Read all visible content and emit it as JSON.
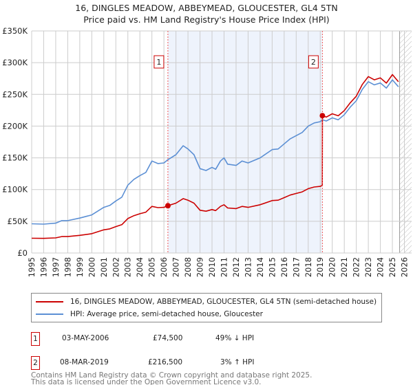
{
  "header": {
    "title": "16, DINGLES MEADOW, ABBEYMEAD, GLOUCESTER, GL4 5TN",
    "subtitle": "Price paid vs. HM Land Registry's House Price Index (HPI)"
  },
  "chart_data": {
    "type": "line",
    "title": "16, DINGLES MEADOW, ABBEYMEAD, GLOUCESTER, GL4 5TN",
    "subtitle": "Price paid vs. HM Land Registry's House Price Index (HPI)",
    "xlim": [
      1995,
      2026.6
    ],
    "ylim": [
      0,
      350000
    ],
    "y_ticks": [
      0,
      50000,
      100000,
      150000,
      200000,
      250000,
      300000,
      350000
    ],
    "y_tick_labels": [
      "£0",
      "£50K",
      "£100K",
      "£150K",
      "£200K",
      "£250K",
      "£300K",
      "£350K"
    ],
    "x_ticks": [
      1995,
      1996,
      1997,
      1998,
      1999,
      2000,
      2001,
      2002,
      2003,
      2004,
      2005,
      2006,
      2007,
      2008,
      2009,
      2010,
      2011,
      2012,
      2013,
      2014,
      2015,
      2016,
      2017,
      2018,
      2019,
      2020,
      2021,
      2022,
      2023,
      2024,
      2025,
      2026
    ],
    "x_tick_labels": [
      "1995",
      "1996",
      "1997",
      "1998",
      "1999",
      "2000",
      "2001",
      "2002",
      "2003",
      "2004",
      "2005",
      "2006",
      "2007",
      "2008",
      "2009",
      "2010",
      "2011",
      "2012",
      "2013",
      "2014",
      "2015",
      "2016",
      "2017",
      "2018",
      "2019",
      "2020",
      "2021",
      "2022",
      "2023",
      "2024",
      "2025",
      "2026"
    ],
    "grid": true,
    "hatched_from": 2025.6,
    "series": [
      {
        "name": "16, DINGLES MEADOW, ABBEYMEAD, GLOUCESTER, GL4 5TN (semi-detached house)",
        "color": "#cc0000",
        "x": [
          1995,
          1996,
          1997,
          1997.5,
          1998,
          1999,
          2000,
          2001,
          2001.5,
          2002,
          2002.5,
          2003,
          2003.5,
          2004,
          2004.5,
          2005,
          2005.5,
          2006,
          2006.33,
          2007,
          2007.6,
          2008,
          2008.5,
          2009,
          2009.5,
          2010,
          2010.3,
          2010.7,
          2011,
          2011.3,
          2012,
          2012.5,
          2013,
          2014,
          2015,
          2015.5,
          2016,
          2016.5,
          2017,
          2017.5,
          2018,
          2018.5,
          2019,
          2019.17,
          2019.18,
          2019.5,
          2020,
          2020.5,
          2021,
          2021.5,
          2022,
          2022.5,
          2023,
          2023.5,
          2024,
          2024.5,
          2025,
          2025.5
        ],
        "y": [
          23300,
          23100,
          23800,
          25900,
          25900,
          27900,
          30400,
          36500,
          38000,
          41600,
          44600,
          54300,
          58800,
          61900,
          64400,
          73500,
          71500,
          72000,
          74500,
          78600,
          85700,
          83200,
          78600,
          67400,
          65900,
          68500,
          66900,
          73500,
          76100,
          71000,
          70000,
          73500,
          72000,
          76100,
          82700,
          83200,
          87200,
          91300,
          93800,
          96300,
          101400,
          104000,
          105000,
          106500,
          216500,
          214200,
          219400,
          216300,
          224500,
          236900,
          247200,
          265700,
          278100,
          273000,
          276000,
          267800,
          281200,
          269900
        ]
      },
      {
        "name": "HPI: Average price, semi-detached house, Gloucester",
        "color": "#5b8fd4",
        "x": [
          1995,
          1996,
          1997,
          1997.5,
          1998,
          1999,
          2000,
          2001,
          2001.5,
          2002,
          2002.5,
          2003,
          2003.5,
          2004,
          2004.5,
          2005,
          2005.5,
          2006,
          2006.33,
          2007,
          2007.6,
          2008,
          2008.5,
          2009,
          2009.5,
          2010,
          2010.3,
          2010.7,
          2011,
          2011.3,
          2012,
          2012.5,
          2013,
          2014,
          2015,
          2015.5,
          2016,
          2016.5,
          2017,
          2017.5,
          2018,
          2018.5,
          2019,
          2019.18,
          2019.5,
          2020,
          2020.5,
          2021,
          2021.5,
          2022,
          2022.5,
          2023,
          2023.5,
          2024,
          2024.5,
          2025,
          2025.5
        ],
        "y": [
          46000,
          45500,
          47000,
          51000,
          51000,
          55000,
          60000,
          72000,
          75000,
          82000,
          88000,
          107000,
          116000,
          122000,
          127000,
          145000,
          141000,
          142000,
          147000,
          155000,
          169000,
          164000,
          155000,
          133000,
          130000,
          135000,
          132000,
          145000,
          150000,
          140000,
          138000,
          145000,
          142000,
          150000,
          163000,
          164000,
          172000,
          180000,
          185000,
          190000,
          200000,
          205000,
          207000,
          210000,
          208000,
          213000,
          210000,
          218000,
          230000,
          240000,
          258000,
          270000,
          265000,
          268000,
          260000,
          273000,
          262000
        ]
      }
    ],
    "annotations": [
      {
        "label": "1",
        "x": 2006.33,
        "y": 74500
      },
      {
        "label": "2",
        "x": 2019.18,
        "y": 216500
      }
    ],
    "shaded_between": [
      2006.33,
      2019.18
    ],
    "legend_position": "below"
  },
  "legend": {
    "items": [
      {
        "label": "16, DINGLES MEADOW, ABBEYMEAD, GLOUCESTER, GL4 5TN (semi-detached house)",
        "color": "#cc0000"
      },
      {
        "label": "HPI: Average price, semi-detached house, Gloucester",
        "color": "#5b8fd4"
      }
    ]
  },
  "transactions": [
    {
      "num": "1",
      "date": "03-MAY-2006",
      "price": "£74,500",
      "hpi": "49% ↓ HPI"
    },
    {
      "num": "2",
      "date": "08-MAR-2019",
      "price": "£216,500",
      "hpi": "3% ↑ HPI"
    }
  ],
  "footer": {
    "line1": "Contains HM Land Registry data © Crown copyright and database right 2025.",
    "line2": "This data is licensed under the Open Government Licence v3.0."
  }
}
